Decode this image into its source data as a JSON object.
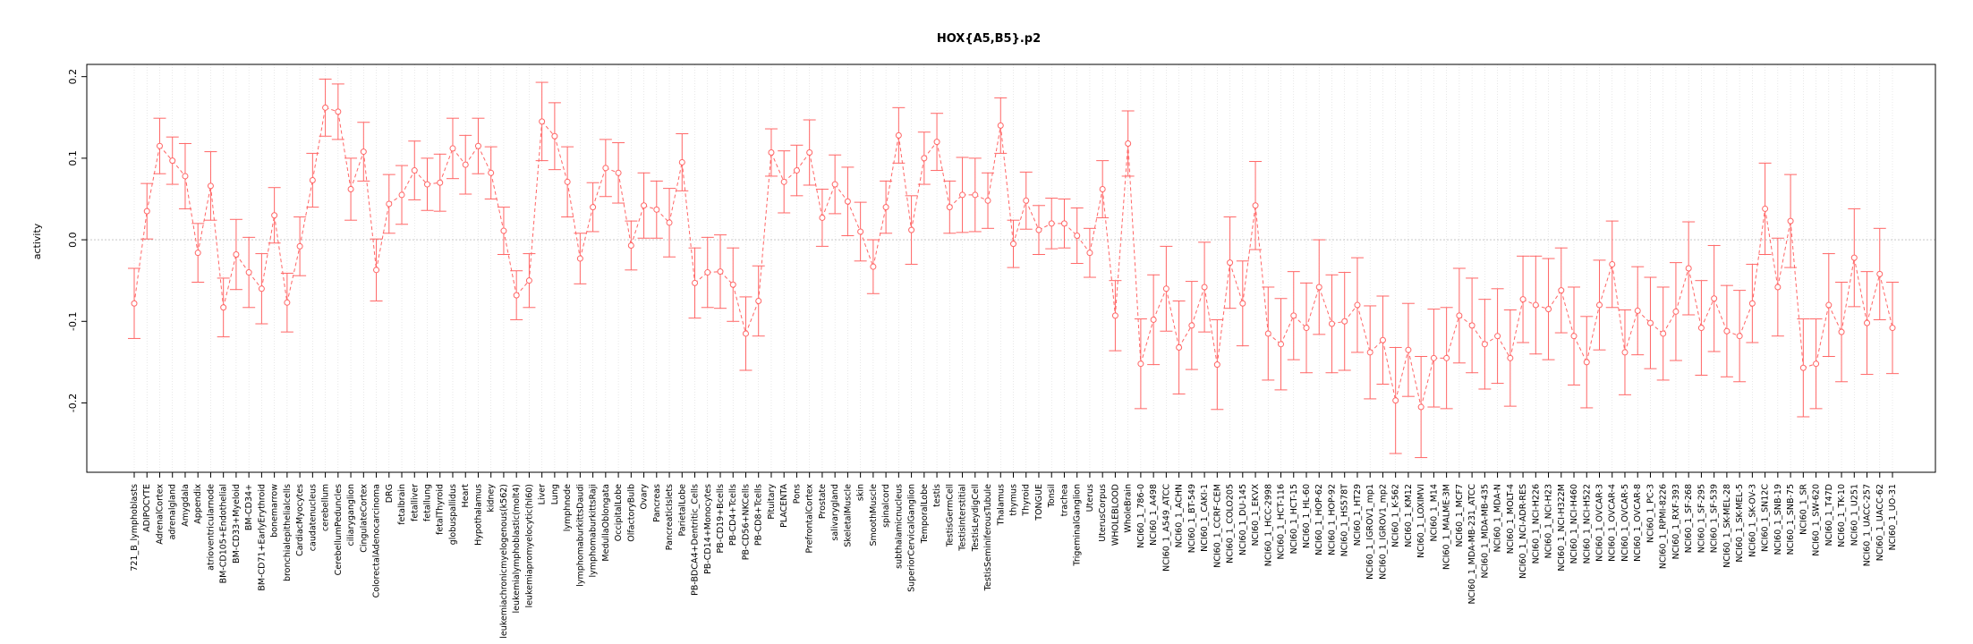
{
  "chart_data": {
    "type": "line",
    "title": "HOX{A5,B5}.p2",
    "xlabel": "",
    "ylabel": "activity",
    "ylim": [
      -0.285,
      0.215
    ],
    "yticks": [
      "-0.2",
      "-0.1",
      "0.0",
      "0.1",
      "0.2"
    ],
    "grid": true,
    "colors": {
      "series": "#ff6666",
      "grid": "#d9d9d9",
      "zero_line": "#bfbfbf",
      "frame": "#000000"
    },
    "categories": [
      "721_B_lymphoblasts",
      "ADIPOCYTE",
      "AdrenalCortex",
      "adrenalgland",
      "Amygdala",
      "Appendix",
      "atrioventricularnode",
      "BM-CD105+Endothelial",
      "BM-CD33+Myeloid",
      "BM-CD34+",
      "BM-CD71+EarlyErythroid",
      "bonemarrow",
      "bronchialepithelialcells",
      "CardiacMyocytes",
      "caudatenucleus",
      "cerebellum",
      "CerebellumPeduncles",
      "ciliaryganglion",
      "CingulateCortex",
      "ColorectalAdenocarcinoma",
      "DRG",
      "fetalbrain",
      "fetalliver",
      "fetallung",
      "fetalThyroid",
      "globuspallidus",
      "Heart",
      "Hypothalamus",
      "kidney",
      "leukemiachronicmyelogenous(k562)",
      "leukemialymphoblastic(molt4)",
      "leukemiapromyelocytic(hl60)",
      "Liver",
      "Lung",
      "lymphnode",
      "lymphomaburkittsDaudi",
      "lymphomaburkittsRaji",
      "MedullaOblongata",
      "OccipitalLobe",
      "OlfactoryBulb",
      "Ovary",
      "Pancreas",
      "PancreaticIslets",
      "ParietalLobe",
      "PB-BDCA4+Dentritic_Cells",
      "PB-CD14+Monocytes",
      "PB-CD19+Bcells",
      "PB-CD4+Tcells",
      "PB-CD56+NKCells",
      "PB-CD8+Tcells",
      "Pituitary",
      "PLACENTA",
      "Pons",
      "PrefrontalCortex",
      "Prostate",
      "salivarygland",
      "SkeletalMuscle",
      "skin",
      "SmoothMuscle",
      "spinalcord",
      "subthalamicnucleus",
      "SuperiorCervicalGanglion",
      "TemporalLobe",
      "testis",
      "TestisGermCell",
      "TestisInterstitial",
      "TestisLeydigCell",
      "TestisSeminiferousTubule",
      "Thalamus",
      "thymus",
      "Thyroid",
      "TONGUE",
      "Tonsil",
      "trachea",
      "TrigeminalGanglion",
      "Uterus",
      "UterusCorpus",
      "WHOLEBLOOD",
      "WholeBrain",
      "NCI60_1_786-0",
      "NCI60_1_A498",
      "NCI60_1_A549_ATCC",
      "NCI60_1_ACHN",
      "NCI60_1_BT-549",
      "NCI60_1_CAKI-1",
      "NCI60_1_CCRF-CEM",
      "NCI60_1_COLO205",
      "NCI60_1_DU-145",
      "NCI60_1_EKVX",
      "NCI60_1_HCC-2998",
      "NCI60_1_HCT-116",
      "NCI60_1_HCT-15",
      "NCI60_1_HL-60",
      "NCI60_1_HOP-62",
      "NCI60_1_HOP-92",
      "NCI60_1_HS578T",
      "NCI60_1_HT29",
      "NCI60_1_IGROV1_mp1",
      "NCI60_1_IGROV1_mp2",
      "NCI60_1_K-562",
      "NCI60_1_KM12",
      "NCI60_1_LOXIMVI",
      "NCI60_1_M14",
      "NCI60_1_MALME-3M",
      "NCI60_1_MCF7",
      "NCI60_1_MDA-MB-231_ATCC",
      "NCI60_1_MDA-MB-435",
      "NCI60_1_MDA-N",
      "NCI60_1_MOLT-4",
      "NCI60_1_NCI-ADR-RES",
      "NCI60_1_NCI-H226",
      "NCI60_1_NCI-H23",
      "NCI60_1_NCI-H322M",
      "NCI60_1_NCI-H460",
      "NCI60_1_NCI-H522",
      "NCI60_1_OVCAR-3",
      "NCI60_1_OVCAR-4",
      "NCI60_1_OVCAR-5",
      "NCI60_1_OVCAR-8",
      "NCI60_1_PC-3",
      "NCI60_1_RPMI-8226",
      "NCI60_1_RXF-393",
      "NCI60_1_SF-268",
      "NCI60_1_SF-295",
      "NCI60_1_SF-539",
      "NCI60_1_SK-MEL-28",
      "NCI60_1_SK-MEL-5",
      "NCI60_1_SK-OV-3",
      "NCI60_1_SN12C",
      "NCI60_1_SNB-19",
      "NCI60_1_SNB-75",
      "NCI60_1_SR",
      "NCI60_1_SW-620",
      "NCI60_1_T47D",
      "NCI60_1_TK-10",
      "NCI60_1_U251",
      "NCI60_1_UACC-257",
      "NCI60_1_UACC-62",
      "NCI60_1_UO-31"
    ],
    "values": [
      -0.078,
      0.035,
      0.115,
      0.097,
      0.078,
      -0.016,
      0.066,
      -0.083,
      -0.018,
      -0.04,
      -0.06,
      0.03,
      -0.077,
      -0.008,
      0.073,
      0.162,
      0.157,
      0.062,
      0.108,
      -0.037,
      0.044,
      0.055,
      0.085,
      0.068,
      0.07,
      0.112,
      0.092,
      0.115,
      0.082,
      0.011,
      -0.068,
      -0.05,
      0.145,
      0.127,
      0.071,
      -0.023,
      0.04,
      0.088,
      0.082,
      -0.007,
      0.042,
      0.037,
      0.021,
      0.095,
      -0.053,
      -0.04,
      -0.039,
      -0.055,
      -0.115,
      -0.075,
      0.107,
      0.071,
      0.085,
      0.107,
      0.027,
      0.068,
      0.047,
      0.01,
      -0.033,
      0.04,
      0.128,
      0.012,
      0.1,
      0.12,
      0.04,
      0.055,
      0.055,
      0.048,
      0.14,
      -0.005,
      0.048,
      0.012,
      0.02,
      0.02,
      0.005,
      -0.016,
      0.062,
      -0.093,
      0.118,
      -0.152,
      -0.098,
      -0.06,
      -0.132,
      -0.105,
      -0.058,
      -0.153,
      -0.028,
      -0.078,
      0.042,
      -0.115,
      -0.128,
      -0.093,
      -0.108,
      -0.058,
      -0.103,
      -0.1,
      -0.08,
      -0.138,
      -0.123,
      -0.197,
      -0.135,
      -0.205,
      -0.145,
      -0.145,
      -0.093,
      -0.105,
      -0.128,
      -0.118,
      -0.145,
      -0.073,
      -0.08,
      -0.085,
      -0.062,
      -0.118,
      -0.15,
      -0.08,
      -0.03,
      -0.138,
      -0.087,
      -0.102,
      -0.115,
      -0.088,
      -0.035,
      -0.108,
      -0.072,
      -0.112,
      -0.118,
      -0.078,
      0.038,
      -0.058,
      0.023,
      -0.157,
      -0.152,
      -0.08,
      -0.113,
      -0.022,
      -0.102,
      -0.042,
      -0.108
    ],
    "errors": [
      0.043,
      0.034,
      0.034,
      0.029,
      0.04,
      0.036,
      0.042,
      0.036,
      0.043,
      0.043,
      0.043,
      0.034,
      0.036,
      0.036,
      0.033,
      0.035,
      0.034,
      0.038,
      0.036,
      0.038,
      0.036,
      0.036,
      0.036,
      0.032,
      0.035,
      0.037,
      0.036,
      0.034,
      0.032,
      0.029,
      0.03,
      0.033,
      0.048,
      0.041,
      0.043,
      0.031,
      0.03,
      0.035,
      0.037,
      0.03,
      0.04,
      0.035,
      0.042,
      0.035,
      0.043,
      0.043,
      0.045,
      0.045,
      0.045,
      0.043,
      0.029,
      0.038,
      0.031,
      0.04,
      0.035,
      0.036,
      0.042,
      0.036,
      0.033,
      0.032,
      0.034,
      0.042,
      0.032,
      0.035,
      0.032,
      0.046,
      0.045,
      0.034,
      0.034,
      0.029,
      0.035,
      0.03,
      0.031,
      0.03,
      0.034,
      0.03,
      0.035,
      0.043,
      0.04,
      0.055,
      0.055,
      0.052,
      0.057,
      0.054,
      0.055,
      0.055,
      0.056,
      0.052,
      0.054,
      0.057,
      0.056,
      0.054,
      0.055,
      0.058,
      0.06,
      0.06,
      0.058,
      0.057,
      0.054,
      0.065,
      0.057,
      0.062,
      0.06,
      0.062,
      0.058,
      0.058,
      0.055,
      0.058,
      0.059,
      0.053,
      0.06,
      0.062,
      0.052,
      0.06,
      0.056,
      0.055,
      0.053,
      0.052,
      0.054,
      0.056,
      0.057,
      0.06,
      0.057,
      0.058,
      0.065,
      0.056,
      0.056,
      0.048,
      0.056,
      0.06,
      0.057,
      0.06,
      0.055,
      0.063,
      0.061,
      0.06,
      0.063,
      0.056,
      0.056
    ]
  }
}
